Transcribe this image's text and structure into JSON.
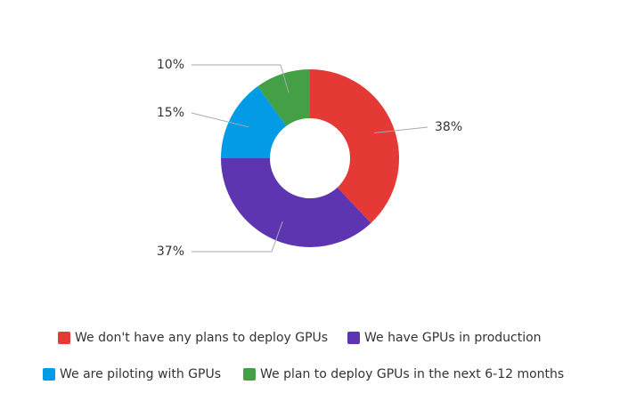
{
  "chart_data": {
    "type": "donut",
    "categories": [
      "We don't have any plans to deploy GPUs",
      "We have GPUs in production",
      "We are piloting with GPUs",
      "We plan to deploy GPUs in the next 6-12 months"
    ],
    "values": [
      38,
      37,
      15,
      10
    ],
    "value_labels": [
      "38%",
      "37%",
      "15%",
      "10%"
    ],
    "colors": [
      "#e53935",
      "#5e35b1",
      "#039be5",
      "#43a047"
    ]
  }
}
